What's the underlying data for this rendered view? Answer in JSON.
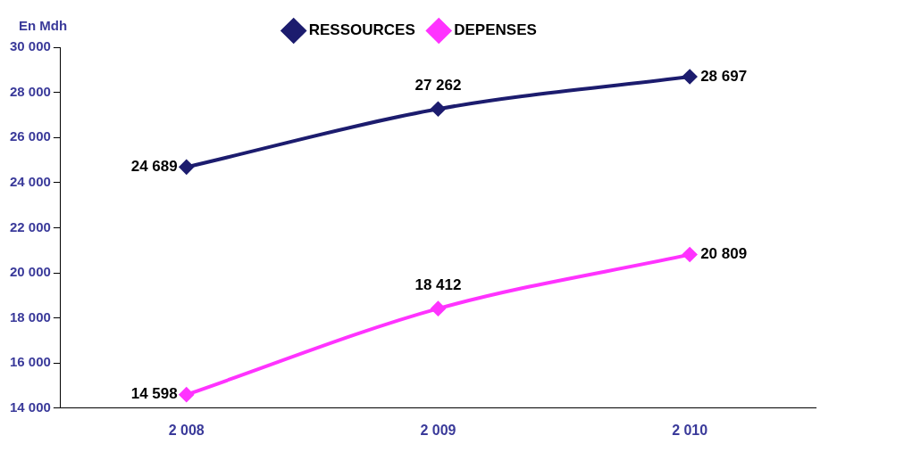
{
  "chart_data": {
    "type": "line",
    "ylabel": "En Mdh",
    "categories": [
      "2 008",
      "2 009",
      "2 010"
    ],
    "series": [
      {
        "name": "RESSOURCES",
        "color": "#1c1c6e",
        "values": [
          24689,
          27262,
          28697
        ],
        "value_labels": [
          "24 689",
          "27 262",
          "28 697"
        ]
      },
      {
        "name": "DEPENSES",
        "color": "#ff33ff",
        "values": [
          14598,
          18412,
          20809
        ],
        "value_labels": [
          "14 598",
          "18 412",
          "20 809"
        ]
      }
    ],
    "ylim": [
      14000,
      30000
    ],
    "yticks": [
      {
        "value": 14000,
        "label": "14 000"
      },
      {
        "value": 16000,
        "label": "16 000"
      },
      {
        "value": 18000,
        "label": "18 000"
      },
      {
        "value": 20000,
        "label": "20 000"
      },
      {
        "value": 22000,
        "label": "22 000"
      },
      {
        "value": 24000,
        "label": "24 000"
      },
      {
        "value": 26000,
        "label": "26 000"
      },
      {
        "value": 28000,
        "label": "28 000"
      },
      {
        "value": 30000,
        "label": "30 000"
      }
    ],
    "grid": false,
    "legend": "top",
    "marker": "diamond",
    "line_style": "solid"
  }
}
